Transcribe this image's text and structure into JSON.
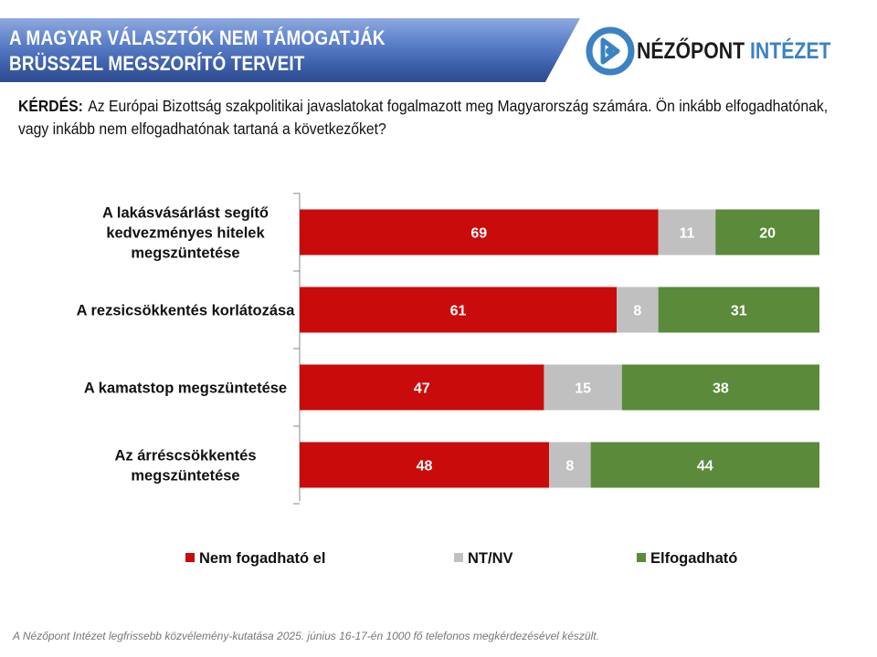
{
  "header": {
    "title_line1": "A MAGYAR VÁLASZTÓK NEM TÁMOGATJÁK",
    "title_line2": "BRÜSSZEL MEGSZORÍTÓ TERVEIT"
  },
  "logo": {
    "name_part1": "NÉZŐPONT",
    "name_part2": "INTÉZET"
  },
  "question": {
    "label": "KÉRDÉS:",
    "text": "Az Európai Bizottság szakpolitikai javaslatokat fogalmazott meg Magyarország számára. Ön inkább elfogadhatónak, vagy inkább nem elfogadhatónak tartaná a következőket?"
  },
  "footer": "A Nézőpont Intézet legfrissebb közvélemény-kutatása 2025. június 16-17-én 1000 fő telefonos megkérdezésével készült.",
  "chart_data": {
    "type": "bar",
    "orientation": "horizontal",
    "stacked": true,
    "categories": [
      [
        "A lakásvásárlást segítő",
        "kedvezményes hitelek",
        "megszüntetése"
      ],
      [
        "A rezsicsökkentés korlátozása"
      ],
      [
        "A kamatstop megszüntetése"
      ],
      [
        "Az árréscsökkentés",
        "megszüntetése"
      ]
    ],
    "series": [
      {
        "name": "Nem fogadható el",
        "color": "#C90B0B",
        "values": [
          69,
          61,
          47,
          48
        ]
      },
      {
        "name": "NT/NV",
        "color": "#C0C0C0",
        "values": [
          11,
          8,
          15,
          8
        ]
      },
      {
        "name": "Elfogadható",
        "color": "#5A8A3A",
        "values": [
          20,
          31,
          38,
          44
        ]
      }
    ],
    "xlim": [
      0,
      100
    ],
    "grid": false,
    "legend": "bottom"
  }
}
